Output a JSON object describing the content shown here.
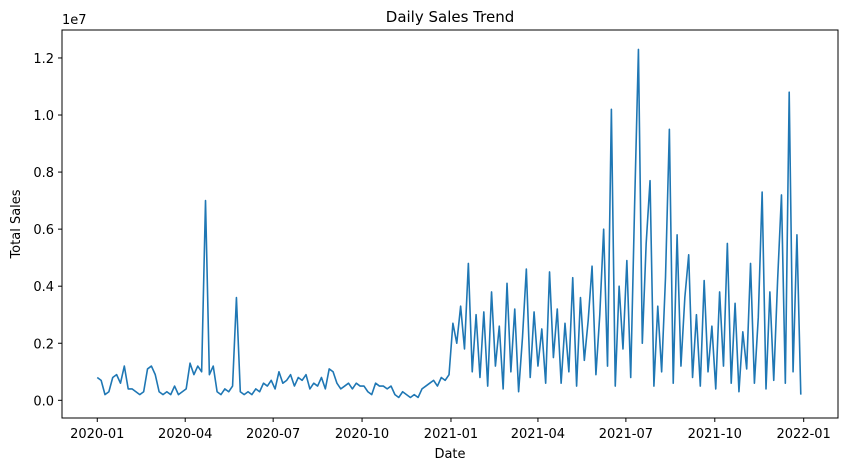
{
  "chart_data": {
    "type": "line",
    "title": "Daily Sales Trend",
    "xlabel": "Date",
    "ylabel": "Total Sales",
    "y_offset_label": "1e7",
    "xlim": [
      18225.5,
      19028.5
    ],
    "xticks": [
      {
        "value": 18262,
        "label": "2020-01"
      },
      {
        "value": 18353,
        "label": "2020-04"
      },
      {
        "value": 18444,
        "label": "2020-07"
      },
      {
        "value": 18536,
        "label": "2020-10"
      },
      {
        "value": 18628,
        "label": "2021-01"
      },
      {
        "value": 18718,
        "label": "2021-04"
      },
      {
        "value": 18809,
        "label": "2021-07"
      },
      {
        "value": 18901,
        "label": "2021-10"
      },
      {
        "value": 18993,
        "label": "2022-01"
      }
    ],
    "ylim": [
      -0.062,
      1.298
    ],
    "yticks": [
      {
        "value": 0,
        "label": "0.0"
      },
      0.2,
      0.4,
      0.6,
      0.8,
      {
        "value": 1,
        "label": "1.0"
      },
      1.2
    ],
    "grid": false,
    "x": [
      18262,
      18266,
      18270,
      18274,
      18278,
      18282,
      18286,
      18290,
      18294,
      18298,
      18302,
      18306,
      18310,
      18314,
      18318,
      18322,
      18326,
      18330,
      18334,
      18338,
      18342,
      18346,
      18350,
      18354,
      18358,
      18362,
      18366,
      18370,
      18374,
      18378,
      18382,
      18386,
      18390,
      18394,
      18398,
      18402,
      18406,
      18410,
      18414,
      18418,
      18422,
      18426,
      18430,
      18434,
      18438,
      18442,
      18446,
      18450,
      18454,
      18458,
      18462,
      18466,
      18470,
      18474,
      18478,
      18482,
      18486,
      18490,
      18494,
      18498,
      18502,
      18506,
      18510,
      18514,
      18518,
      18522,
      18526,
      18530,
      18534,
      18538,
      18542,
      18546,
      18550,
      18554,
      18558,
      18562,
      18566,
      18570,
      18574,
      18578,
      18582,
      18586,
      18590,
      18594,
      18598,
      18602,
      18606,
      18610,
      18614,
      18618,
      18622,
      18626,
      18630,
      18634,
      18638,
      18642,
      18646,
      18650,
      18654,
      18658,
      18662,
      18666,
      18670,
      18674,
      18678,
      18682,
      18686,
      18690,
      18694,
      18698,
      18702,
      18706,
      18710,
      18714,
      18718,
      18722,
      18726,
      18730,
      18734,
      18738,
      18742,
      18746,
      18750,
      18754,
      18758,
      18762,
      18766,
      18770,
      18774,
      18778,
      18782,
      18786,
      18790,
      18794,
      18798,
      18802,
      18806,
      18810,
      18814,
      18818,
      18822,
      18826,
      18830,
      18834,
      18838,
      18842,
      18846,
      18850,
      18854,
      18858,
      18862,
      18866,
      18870,
      18874,
      18878,
      18882,
      18886,
      18890,
      18894,
      18898,
      18902,
      18906,
      18910,
      18914,
      18918,
      18922,
      18926,
      18930,
      18934,
      18938,
      18942,
      18946,
      18950,
      18954,
      18958,
      18962,
      18966,
      18970,
      18974,
      18978,
      18982,
      18986,
      18990
    ],
    "series": [
      {
        "name": "Total Sales",
        "color": "#1f77b4",
        "values": [
          0.08,
          0.07,
          0.02,
          0.03,
          0.08,
          0.09,
          0.06,
          0.12,
          0.04,
          0.04,
          0.03,
          0.02,
          0.03,
          0.11,
          0.12,
          0.09,
          0.03,
          0.02,
          0.03,
          0.02,
          0.05,
          0.02,
          0.03,
          0.04,
          0.13,
          0.09,
          0.12,
          0.1,
          0.7,
          0.09,
          0.12,
          0.03,
          0.02,
          0.04,
          0.03,
          0.05,
          0.36,
          0.03,
          0.02,
          0.03,
          0.02,
          0.04,
          0.03,
          0.06,
          0.05,
          0.07,
          0.04,
          0.1,
          0.06,
          0.07,
          0.09,
          0.05,
          0.08,
          0.07,
          0.09,
          0.04,
          0.06,
          0.05,
          0.08,
          0.04,
          0.11,
          0.1,
          0.06,
          0.04,
          0.05,
          0.06,
          0.04,
          0.06,
          0.05,
          0.05,
          0.03,
          0.02,
          0.06,
          0.05,
          0.05,
          0.04,
          0.05,
          0.02,
          0.01,
          0.03,
          0.02,
          0.01,
          0.02,
          0.01,
          0.04,
          0.05,
          0.06,
          0.07,
          0.05,
          0.08,
          0.07,
          0.09,
          0.27,
          0.2,
          0.33,
          0.18,
          0.48,
          0.1,
          0.3,
          0.08,
          0.31,
          0.05,
          0.38,
          0.12,
          0.26,
          0.04,
          0.41,
          0.1,
          0.32,
          0.03,
          0.22,
          0.46,
          0.08,
          0.31,
          0.12,
          0.25,
          0.06,
          0.45,
          0.15,
          0.32,
          0.06,
          0.27,
          0.1,
          0.43,
          0.05,
          0.36,
          0.14,
          0.28,
          0.47,
          0.09,
          0.3,
          0.6,
          0.12,
          1.02,
          0.05,
          0.4,
          0.18,
          0.49,
          0.08,
          0.68,
          1.23,
          0.2,
          0.55,
          0.77,
          0.05,
          0.33,
          0.1,
          0.43,
          0.95,
          0.06,
          0.58,
          0.12,
          0.36,
          0.51,
          0.08,
          0.3,
          0.05,
          0.42,
          0.1,
          0.26,
          0.04,
          0.38,
          0.12,
          0.55,
          0.06,
          0.34,
          0.03,
          0.24,
          0.11,
          0.48,
          0.06,
          0.29,
          0.73,
          0.04,
          0.38,
          0.07,
          0.42,
          0.72,
          0.06,
          1.08,
          0.1,
          0.58,
          0.02
        ]
      }
    ]
  }
}
